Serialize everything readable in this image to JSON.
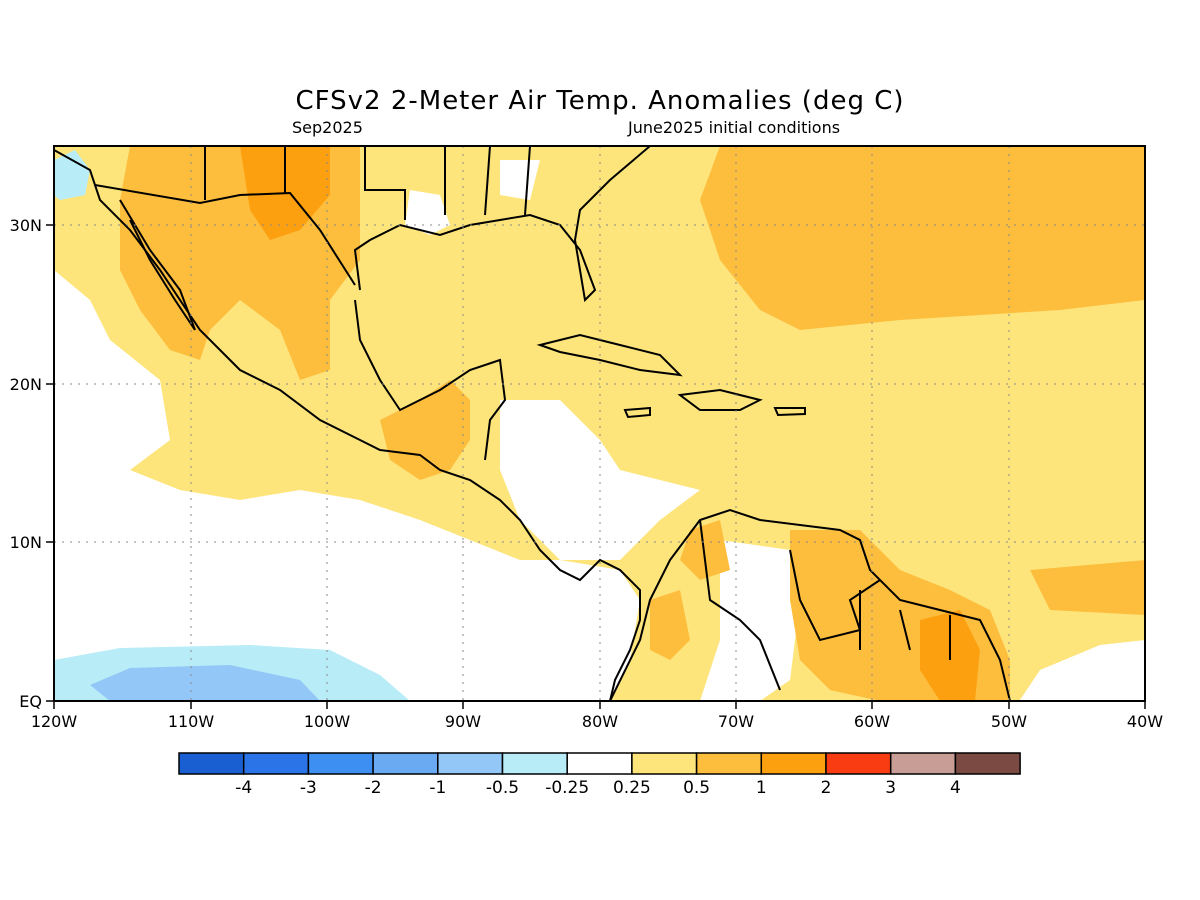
{
  "title": "CFSv2 2-Meter Air Temp. Anomalies (deg C)",
  "valid_month": "Sep2025",
  "initial_conditions": "June2025 initial conditions",
  "axes": {
    "lon_labels": [
      "120W",
      "110W",
      "100W",
      "90W",
      "80W",
      "70W",
      "60W",
      "50W",
      "40W"
    ],
    "lat_labels": [
      "EQ",
      "10N",
      "20N",
      "30N"
    ],
    "lon_range": [
      -120,
      -40
    ],
    "lat_range": [
      0,
      35
    ],
    "grid": "dotted"
  },
  "colorbar": {
    "labels": [
      "-4",
      "-3",
      "-2",
      "-1",
      "-0.5",
      "-0.25",
      "0.25",
      "0.5",
      "1",
      "2",
      "3",
      "4"
    ],
    "colors": [
      "#1a5fd1",
      "#2a74e8",
      "#3d8ff2",
      "#6aaaf3",
      "#93c7f7",
      "#b8ecf7",
      "#ffffff",
      "#fde57c",
      "#fdbe3e",
      "#fca00f",
      "#fa3c12",
      "#c89d95",
      "#7b4a42"
    ]
  },
  "colors": {
    "land_border": "#000000",
    "anom_025_05": "#fde57c",
    "anom_05_1": "#fdbe3e",
    "anom_1_2": "#fca00f",
    "anom_neg_025_05": "#b8ecf7",
    "anom_neg_05_1": "#93c7f7"
  }
}
